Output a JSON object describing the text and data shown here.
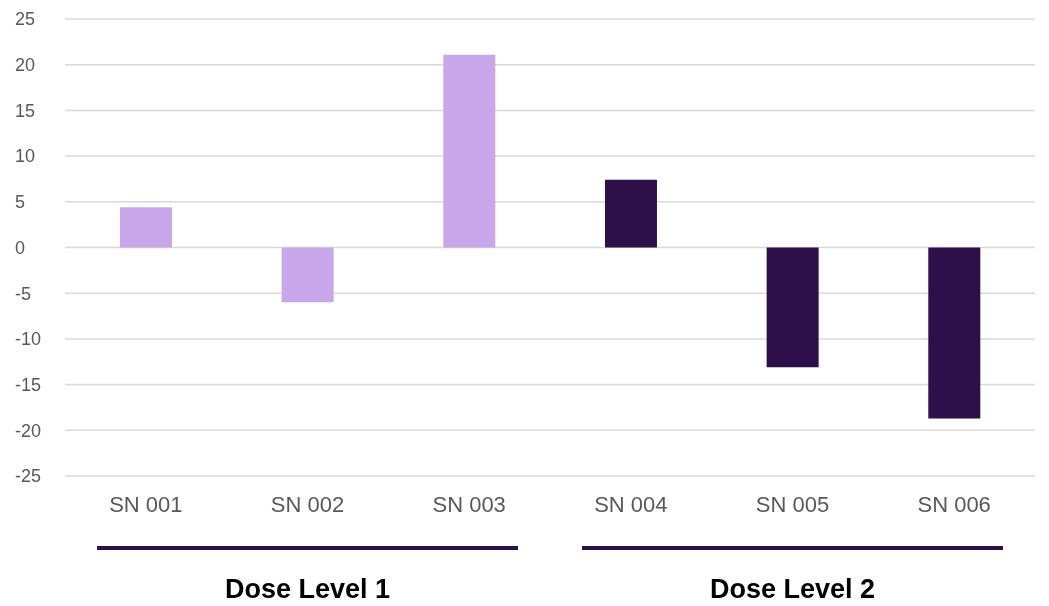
{
  "chart_data": {
    "type": "bar",
    "categories": [
      "SN 001",
      "SN 002",
      "SN 003",
      "SN 004",
      "SN 005",
      "SN 006"
    ],
    "values": [
      4.4,
      -6.0,
      21.1,
      7.4,
      -13.1,
      -18.7
    ],
    "colors": [
      "#c8a8ea",
      "#c8a8ea",
      "#c8a8ea",
      "#2d0f4a",
      "#2d0f4a",
      "#2d0f4a"
    ],
    "ylim": [
      -25,
      25
    ],
    "yticks": [
      -25,
      -20,
      -15,
      -10,
      -5,
      0,
      5,
      10,
      15,
      20,
      25
    ],
    "grid": "y",
    "annotations": [
      "Dose Level 1",
      "Dose Level 2"
    ]
  }
}
